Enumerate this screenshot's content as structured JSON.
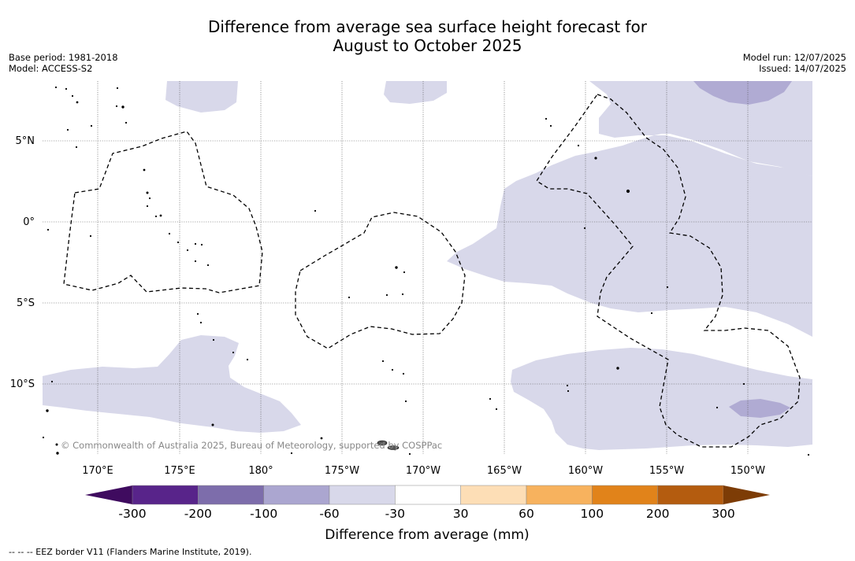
{
  "header": {
    "title_line1": "Difference from average sea surface height forecast for",
    "title_line2": "August to October 2025",
    "base_period": "Base period: 1981-2018",
    "model": "Model: ACCESS-S2",
    "model_run": "Model run: 12/07/2025",
    "issued": "Issued: 14/07/2025"
  },
  "map": {
    "lat_labels": [
      "5°N",
      "0°",
      "5°S",
      "10°S"
    ],
    "lon_labels": [
      "170°E",
      "175°E",
      "180°",
      "175°W",
      "170°W",
      "165°W",
      "160°W",
      "155°W",
      "150°W"
    ],
    "copyright": "© Commonwealth of Australia 2025, Bureau of Meteorology, supported by COSPPac",
    "gridlines": true,
    "colors": {
      "light_lavender": "#d8d8ea",
      "mid_lavender": "#b0abd3",
      "land": "#000000",
      "eez_border": "#000000"
    }
  },
  "colorbar": {
    "ticks": [
      "-300",
      "-200",
      "-100",
      "-60",
      "-30",
      "30",
      "60",
      "100",
      "200",
      "300"
    ],
    "colors": [
      "#3f0b5f",
      "#58248a",
      "#7d6dab",
      "#aba6d0",
      "#d8d8ea",
      "#ffffff",
      "#fddeb6",
      "#f7b25e",
      "#e1831a",
      "#b45c0f",
      "#7d3c06"
    ],
    "label": "Difference from average (mm)"
  },
  "legend": {
    "eez": "-- -- -- EEZ border V11 (Flanders Marine Institute, 2019)."
  }
}
